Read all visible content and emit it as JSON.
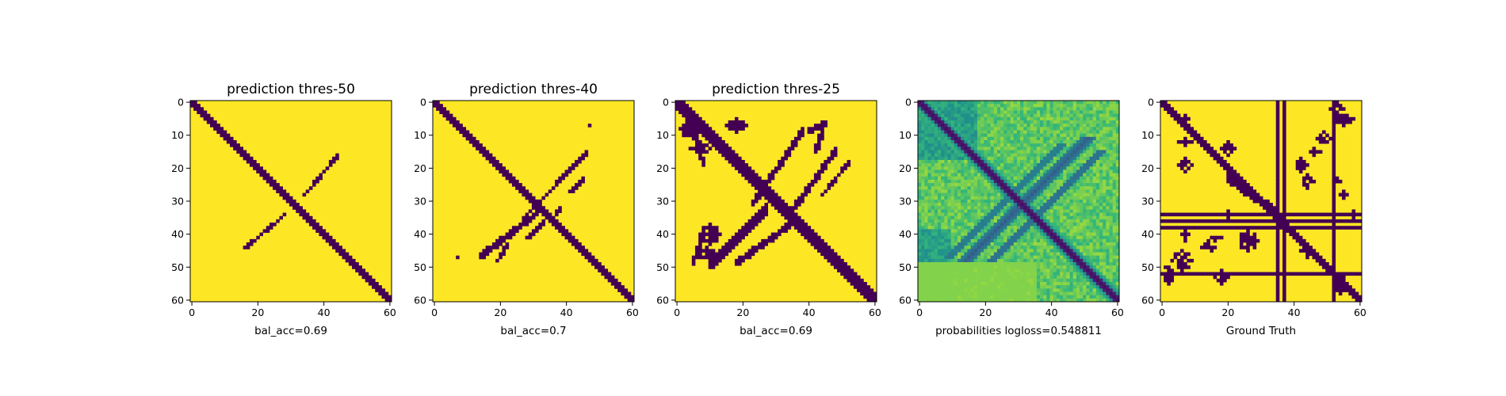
{
  "chart_data": [
    {
      "type": "heatmap",
      "title": "prediction thres-50",
      "xlabel": "bal_acc=0.69",
      "ylabel": "",
      "x_ticks": [
        0,
        20,
        40,
        60
      ],
      "y_ticks": [
        0,
        10,
        20,
        30,
        40,
        50,
        60
      ],
      "xlim": [
        0,
        60
      ],
      "ylim": [
        60,
        0
      ],
      "grid_size": 61,
      "colormap": "viridis",
      "values_binary": true,
      "colors": {
        "background": "#fde725",
        "foreground": "#440154"
      }
    },
    {
      "type": "heatmap",
      "title": "prediction thres-40",
      "xlabel": "bal_acc=0.7",
      "ylabel": "",
      "x_ticks": [
        0,
        20,
        40,
        60
      ],
      "y_ticks": [
        0,
        10,
        20,
        30,
        40,
        50,
        60
      ],
      "xlim": [
        0,
        60
      ],
      "ylim": [
        60,
        0
      ],
      "grid_size": 61,
      "colormap": "viridis",
      "values_binary": true,
      "colors": {
        "background": "#fde725",
        "foreground": "#440154"
      }
    },
    {
      "type": "heatmap",
      "title": "prediction thres-25",
      "xlabel": "bal_acc=0.69",
      "ylabel": "",
      "x_ticks": [
        0,
        20,
        40,
        60
      ],
      "y_ticks": [
        0,
        10,
        20,
        30,
        40,
        50,
        60
      ],
      "xlim": [
        0,
        60
      ],
      "ylim": [
        60,
        0
      ],
      "grid_size": 61,
      "colormap": "viridis",
      "values_binary": true,
      "colors": {
        "background": "#fde725",
        "foreground": "#440154"
      }
    },
    {
      "type": "heatmap",
      "title": "",
      "xlabel": "probabilities logloss=0.548811",
      "ylabel": "",
      "x_ticks": [
        0,
        20,
        40,
        60
      ],
      "y_ticks": [
        0,
        10,
        20,
        30,
        40,
        50,
        60
      ],
      "xlim": [
        0,
        60
      ],
      "ylim": [
        60,
        0
      ],
      "grid_size": 61,
      "colormap": "viridis",
      "values_binary": false
    },
    {
      "type": "heatmap",
      "title": "",
      "xlabel": "Ground Truth",
      "ylabel": "",
      "x_ticks": [
        0,
        20,
        40,
        60
      ],
      "y_ticks": [
        0,
        10,
        20,
        30,
        40,
        50,
        60
      ],
      "xlim": [
        0,
        60
      ],
      "ylim": [
        60,
        0
      ],
      "grid_size": 61,
      "colormap": "viridis",
      "values_binary": true,
      "colors": {
        "background": "#fde725",
        "foreground": "#440154"
      }
    }
  ]
}
